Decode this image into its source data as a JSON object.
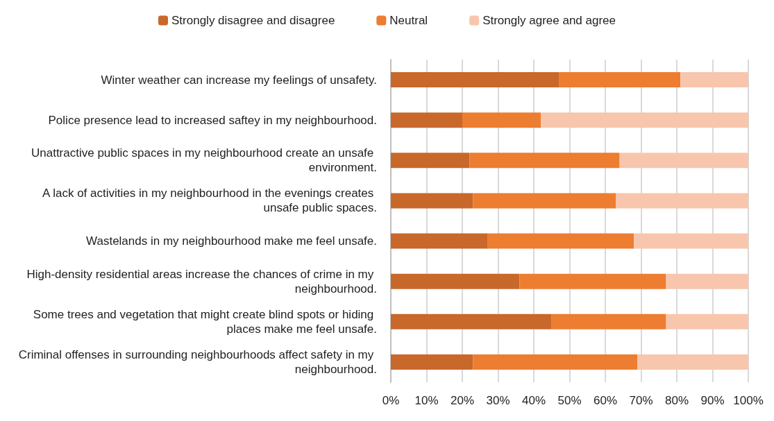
{
  "chart_data": {
    "type": "bar",
    "orientation": "horizontal",
    "stacked": true,
    "categories": [
      "Winter weather can increase my feelings of unsafety.",
      "Police presence lead to increased saftey in my neighbourhood.",
      "Unattractive public spaces in my neighbourhood create an unsafe environment.",
      "A lack of activities in my neighbourhood in the evenings creates unsafe public spaces.",
      "Wastelands in my neighbourhood make me feel unsafe.",
      "High-density residential areas increase the chances of crime in my neighbourhood.",
      "Some trees and vegetation that might create blind spots or hiding places make me feel unsafe.",
      "Criminal offenses in surrounding neighbourhoods affect safety in my neighbourhood."
    ],
    "series": [
      {
        "name": "Strongly disagree and disagree",
        "color": "#c8682a",
        "values": [
          47,
          20,
          22,
          23,
          27,
          36,
          45,
          23
        ]
      },
      {
        "name": "Neutral",
        "color": "#ed7d31",
        "values": [
          34,
          22,
          42,
          40,
          41,
          41,
          32,
          46
        ]
      },
      {
        "name": "Strongly agree and agree",
        "color": "#f8c6ad",
        "values": [
          19,
          58,
          36,
          37,
          32,
          23,
          23,
          31
        ]
      }
    ],
    "xlim": [
      0,
      100
    ],
    "xticks": [
      {
        "value": 0,
        "label": "0%"
      },
      {
        "value": 10,
        "label": "10%"
      },
      {
        "value": 20,
        "label": "20%"
      },
      {
        "value": 30,
        "label": "30%"
      },
      {
        "value": 40,
        "label": "40%"
      },
      {
        "value": 50,
        "label": "50%"
      },
      {
        "value": 60,
        "label": "60%"
      },
      {
        "value": 70,
        "label": "70%"
      },
      {
        "value": 80,
        "label": "80%"
      },
      {
        "value": 90,
        "label": "90%"
      },
      {
        "value": 100,
        "label": "100%"
      }
    ],
    "grid": "x",
    "legend": "top"
  }
}
